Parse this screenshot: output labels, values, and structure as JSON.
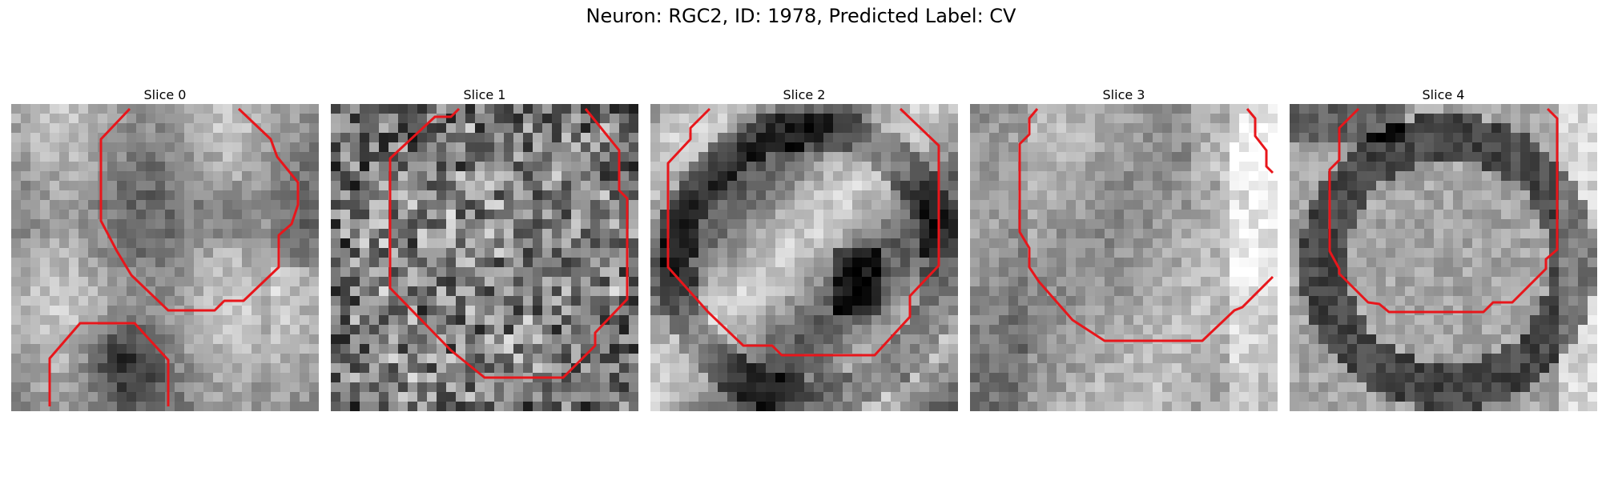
{
  "figure": {
    "title": "Neuron: RGC2, ID: 1978, Predicted Label: CV"
  },
  "colors": {
    "contour": "#e8161b",
    "background": "#ffffff"
  },
  "slices": [
    {
      "title": "Slice 0",
      "seed": 11,
      "pattern": "dark-lower-left"
    },
    {
      "title": "Slice 1",
      "seed": 23,
      "pattern": "noisy"
    },
    {
      "title": "Slice 2",
      "seed": 37,
      "pattern": "ring-diagonal"
    },
    {
      "title": "Slice 3",
      "seed": 49,
      "pattern": "soft-ring"
    },
    {
      "title": "Slice 4",
      "seed": 61,
      "pattern": "ring"
    }
  ]
}
